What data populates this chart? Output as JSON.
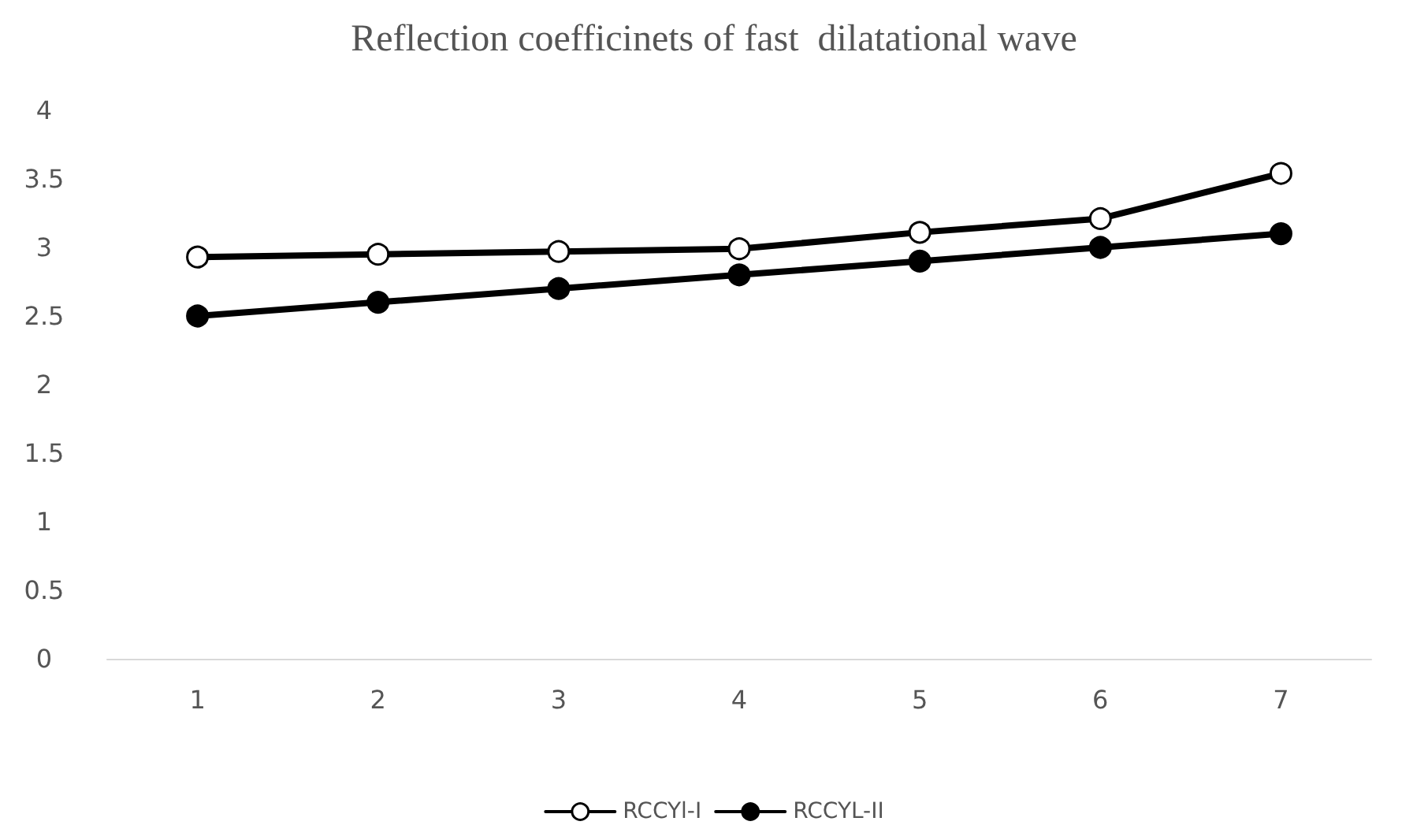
{
  "chart_data": {
    "type": "line",
    "title": "Reflection coefficinets of fast  dilatational wave",
    "categories": [
      "1",
      "2",
      "3",
      "4",
      "5",
      "6",
      "7"
    ],
    "series": [
      {
        "name": "RCCYl-I",
        "color": "#000000",
        "values": [
          2.93,
          2.95,
          2.97,
          2.99,
          3.11,
          3.21,
          3.54
        ]
      },
      {
        "name": "RCCYL-II",
        "color": "#000000",
        "values": [
          2.5,
          2.6,
          2.7,
          2.8,
          2.9,
          3.0,
          3.1
        ]
      }
    ],
    "ylim": [
      0,
      4
    ],
    "yticks": [
      0,
      0.5,
      1,
      1.5,
      2,
      2.5,
      3,
      3.5,
      4
    ],
    "grid": false,
    "legend": "bottom",
    "marker": "circle",
    "line_style": "solid"
  }
}
